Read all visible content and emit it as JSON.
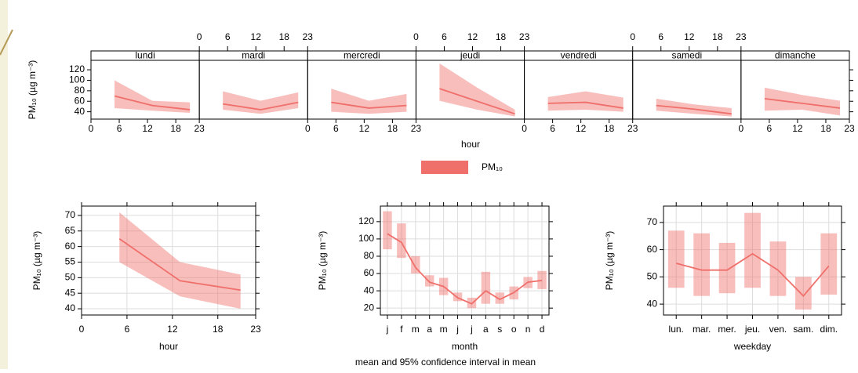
{
  "chart_data": [
    {
      "type": "line",
      "x": [
        5,
        13,
        21
      ],
      "xlim": [
        0,
        23
      ],
      "xticks": [
        0,
        6,
        12,
        18,
        23
      ],
      "ylim": [
        26,
        138
      ],
      "yticks": [
        40,
        60,
        80,
        100,
        120
      ],
      "xlabel": "hour",
      "ylabel": "PM₁₀ (µg m⁻³)",
      "series": [
        {
          "name": "PM₁₀",
          "color": "#ef6f6b"
        }
      ],
      "panels": [
        {
          "label": "lundi",
          "values": [
            70,
            52,
            44
          ],
          "lower": [
            47,
            42,
            38
          ],
          "upper": [
            100,
            61,
            58
          ]
        },
        {
          "label": "mardi",
          "values": [
            55,
            44,
            58
          ],
          "lower": [
            44,
            36,
            47
          ],
          "upper": [
            79,
            61,
            77
          ]
        },
        {
          "label": "mercredi",
          "values": [
            58,
            47,
            52
          ],
          "lower": [
            40,
            36,
            40
          ],
          "upper": [
            84,
            61,
            74
          ]
        },
        {
          "label": "jeudi",
          "values": [
            84,
            60,
            36
          ],
          "lower": [
            61,
            44,
            31
          ],
          "upper": [
            132,
            86,
            44
          ]
        },
        {
          "label": "vendredi",
          "values": [
            56,
            58,
            47
          ],
          "lower": [
            42,
            44,
            40
          ],
          "upper": [
            68,
            79,
            67
          ]
        },
        {
          "label": "samedi",
          "values": [
            52,
            45,
            36
          ],
          "lower": [
            42,
            36,
            31
          ],
          "upper": [
            65,
            54,
            47
          ]
        },
        {
          "label": "dimanche",
          "values": [
            65,
            56,
            47
          ],
          "lower": [
            42,
            44,
            33
          ],
          "upper": [
            86,
            72,
            61
          ]
        }
      ]
    },
    {
      "type": "line",
      "x": [
        5,
        13,
        21
      ],
      "xlim": [
        0,
        23
      ],
      "xticks": [
        0,
        6,
        12,
        18,
        23
      ],
      "ylim": [
        38,
        73
      ],
      "yticks": [
        40,
        45,
        50,
        55,
        60,
        65,
        70
      ],
      "grid": true,
      "xlabel": "hour",
      "ylabel": "PM₁₀ (µg m⁻³)",
      "series": [
        {
          "color": "#ef6f6b",
          "values": [
            62.5,
            49,
            46
          ],
          "lower": [
            55,
            44,
            40
          ],
          "upper": [
            71,
            55,
            51
          ]
        }
      ]
    },
    {
      "type": "errorbar",
      "categories": [
        "j",
        "f",
        "m",
        "a",
        "m",
        "j",
        "j",
        "a",
        "s",
        "o",
        "n",
        "d"
      ],
      "ylim": [
        12,
        138
      ],
      "yticks": [
        20,
        40,
        60,
        80,
        100,
        120
      ],
      "grid": true,
      "xlabel": "month",
      "ylabel": "PM₁₀ (µg m⁻³)",
      "series": [
        {
          "color": "#ef6f6b",
          "values": [
            106,
            96,
            67,
            50,
            45,
            32,
            25,
            40,
            30,
            38,
            50,
            52
          ],
          "lower": [
            88,
            78,
            60,
            45,
            35,
            28,
            20,
            25,
            25,
            30,
            43,
            42
          ],
          "upper": [
            132,
            118,
            80,
            58,
            55,
            38,
            32,
            62,
            38,
            45,
            56,
            63
          ]
        }
      ]
    },
    {
      "type": "errorbar",
      "categories": [
        "lun.",
        "mar.",
        "mer.",
        "jeu.",
        "ven.",
        "sam.",
        "dim."
      ],
      "ylim": [
        36,
        76
      ],
      "yticks": [
        40,
        50,
        60,
        70
      ],
      "grid": true,
      "xlabel": "weekday",
      "ylabel": "PM₁₀ (µg m⁻³)",
      "series": [
        {
          "color": "#ef6f6b",
          "values": [
            55,
            52.5,
            52.5,
            58.5,
            52.5,
            43,
            54
          ],
          "lower": [
            46,
            43,
            44,
            46,
            43,
            38,
            43.5
          ],
          "upper": [
            67,
            66,
            62.5,
            73.5,
            63,
            50,
            66
          ]
        }
      ]
    }
  ],
  "caption": "mean and 95% confidence interval in mean"
}
